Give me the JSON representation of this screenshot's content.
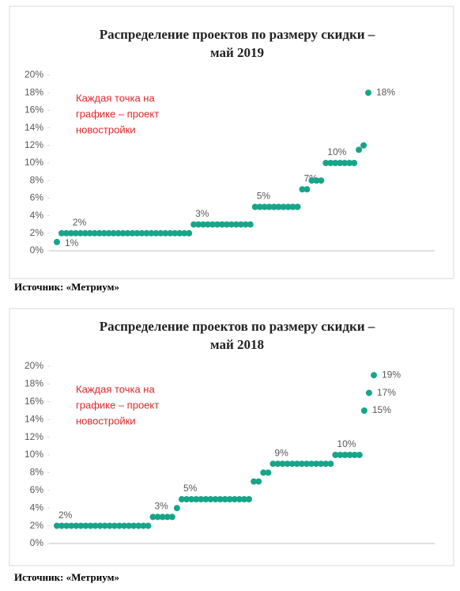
{
  "chart_data": [
    {
      "type": "scatter",
      "title": [
        "Распределение проектов по размеру скидки –",
        "май 2019"
      ],
      "annotation": [
        "Каждая точка на",
        "графике – проект",
        "новостройки"
      ],
      "source": "Источник: «Метриум»",
      "color": "#17a589",
      "values": [
        1,
        2,
        2,
        2,
        2,
        2,
        2,
        2,
        2,
        2,
        2,
        2,
        2,
        2,
        2,
        2,
        2,
        2,
        2,
        2,
        2,
        2,
        2,
        2,
        2,
        2,
        2,
        2,
        2,
        3,
        3,
        3,
        3,
        3,
        3,
        3,
        3,
        3,
        3,
        3,
        3,
        3,
        5,
        5,
        5,
        5,
        5,
        5,
        5,
        5,
        5,
        5,
        7,
        7,
        8,
        8,
        8,
        10,
        10,
        10,
        10,
        10,
        10,
        10,
        11.5,
        12,
        18
      ],
      "value_labels": [
        "1%",
        null,
        null,
        "2%",
        null,
        null,
        null,
        null,
        null,
        null,
        null,
        null,
        null,
        null,
        null,
        null,
        null,
        null,
        null,
        null,
        null,
        null,
        null,
        null,
        null,
        null,
        null,
        null,
        null,
        "3%",
        null,
        null,
        null,
        null,
        null,
        null,
        null,
        null,
        null,
        null,
        null,
        null,
        "5%",
        null,
        null,
        null,
        null,
        null,
        null,
        null,
        null,
        null,
        "7%",
        null,
        null,
        null,
        null,
        "10%",
        null,
        null,
        null,
        null,
        null,
        null,
        null,
        null,
        "18%"
      ],
      "ylim": [
        0,
        20
      ],
      "yticks": [
        {
          "value": 0,
          "label": "0%"
        },
        {
          "value": 2,
          "label": "2%"
        },
        {
          "value": 4,
          "label": "4%"
        },
        {
          "value": 6,
          "label": "6%"
        },
        {
          "value": 8,
          "label": "8%"
        },
        {
          "value": 10,
          "label": "10%"
        },
        {
          "value": 12,
          "label": "12%"
        },
        {
          "value": 14,
          "label": "14%"
        },
        {
          "value": 16,
          "label": "16%"
        },
        {
          "value": 18,
          "label": "18%"
        },
        {
          "value": 20,
          "label": "20%"
        }
      ]
    },
    {
      "type": "scatter",
      "title": [
        "Распределение проектов по размеру скидки –",
        "май 2018"
      ],
      "annotation": [
        "Каждая точка на",
        "графике – проект",
        "новостройки"
      ],
      "source": "Источник: «Метриум»",
      "color": "#17a589",
      "values": [
        2,
        2,
        2,
        2,
        2,
        2,
        2,
        2,
        2,
        2,
        2,
        2,
        2,
        2,
        2,
        2,
        2,
        2,
        2,
        2,
        3,
        3,
        3,
        3,
        3,
        4,
        5,
        5,
        5,
        5,
        5,
        5,
        5,
        5,
        5,
        5,
        5,
        5,
        5,
        5,
        5,
        7,
        7,
        8,
        8,
        9,
        9,
        9,
        9,
        9,
        9,
        9,
        9,
        9,
        9,
        9,
        9,
        9,
        10,
        10,
        10,
        10,
        10,
        10,
        15,
        17,
        19
      ],
      "value_labels": [
        "2%",
        null,
        null,
        null,
        null,
        null,
        null,
        null,
        null,
        null,
        null,
        null,
        null,
        null,
        null,
        null,
        null,
        null,
        null,
        null,
        "3%",
        null,
        null,
        null,
        null,
        null,
        "5%",
        null,
        null,
        null,
        null,
        null,
        null,
        null,
        null,
        null,
        null,
        null,
        null,
        null,
        null,
        null,
        null,
        null,
        null,
        "9%",
        null,
        null,
        null,
        null,
        null,
        null,
        null,
        null,
        null,
        null,
        null,
        null,
        "10%",
        null,
        null,
        null,
        null,
        null,
        "15%",
        "17%",
        "19%"
      ],
      "ylim": [
        0,
        20
      ],
      "yticks": [
        {
          "value": 0,
          "label": "0%"
        },
        {
          "value": 2,
          "label": "2%"
        },
        {
          "value": 4,
          "label": "4%"
        },
        {
          "value": 6,
          "label": "6%"
        },
        {
          "value": 8,
          "label": "8%"
        },
        {
          "value": 10,
          "label": "10%"
        },
        {
          "value": 12,
          "label": "12%"
        },
        {
          "value": 14,
          "label": "14%"
        },
        {
          "value": 16,
          "label": "16%"
        },
        {
          "value": 18,
          "label": "18%"
        },
        {
          "value": 20,
          "label": "20%"
        }
      ]
    }
  ]
}
